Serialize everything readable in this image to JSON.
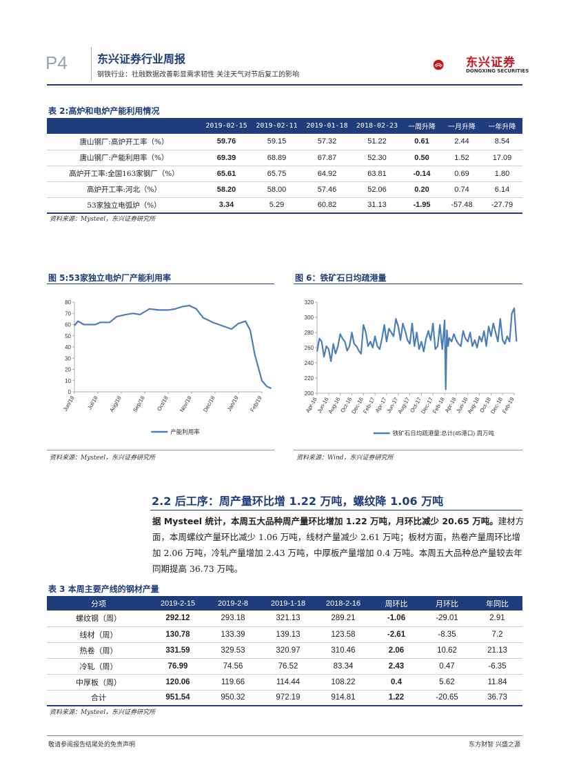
{
  "header": {
    "page": "P4",
    "title": "东兴证券行业周报",
    "subtitle": "钢铁行业：社融数据改善彰显需求韧性 关注天气对节后复工的影响",
    "logo_cn": "东兴证券",
    "logo_en": "DONGXING SECURITIES"
  },
  "table2": {
    "caption": "表 2:高炉和电炉产能利用情况",
    "columns": [
      "",
      "2019-02-15",
      "2019-02-11",
      "2019-01-18",
      "2018-02-23",
      "一周升降",
      "一月升降",
      "一年升降"
    ],
    "rows": [
      [
        "唐山钢厂:高炉开工率（%）",
        "59.76",
        "59.15",
        "57.32",
        "51.22",
        "0.61",
        "2.44",
        "8.54"
      ],
      [
        "唐山钢厂:产能利用率（%）",
        "69.39",
        "68.89",
        "67.87",
        "52.30",
        "0.50",
        "1.52",
        "17.09"
      ],
      [
        "高炉开工率:全国163家钢厂（%）",
        "65.61",
        "65.75",
        "64.92",
        "63.81",
        "-0.14",
        "0.69",
        "1.80"
      ],
      [
        "高炉开工率:河北（%）",
        "58.20",
        "58.00",
        "57.46",
        "52.06",
        "0.20",
        "0.74",
        "6.14"
      ],
      [
        "53家独立电弧炉（%）",
        "3.34",
        "5.29",
        "60.82",
        "31.13",
        "-1.95",
        "-57.48",
        "-27.79"
      ]
    ],
    "source": "资料来源：Mysteel，东兴证券研究所"
  },
  "chart5": {
    "caption": "图 5:53家独立电炉厂产能利用率",
    "source": "资料来源：Mysteel，东兴证券研究所"
  },
  "chart6": {
    "caption": "图 6：铁矿石日均疏港量",
    "source": "资料来源：Wind，东兴证券研究所"
  },
  "chart_data": [
    {
      "type": "line",
      "title": "53家独立电炉厂产能利用率",
      "legend": "产能利用率",
      "x_ticks": [
        "Jun/18",
        "Jul/18",
        "Aug/18",
        "Sep/18",
        "Oct/18",
        "Nov/18",
        "Dec/18",
        "Jan/19",
        "Feb/19"
      ],
      "ylim": [
        0,
        80
      ],
      "y_ticks": [
        0,
        10,
        20,
        30,
        40,
        50,
        60,
        70,
        80
      ],
      "x": [
        0,
        0.15,
        0.4,
        0.9,
        1.1,
        1.5,
        1.8,
        2.2,
        2.5,
        2.8,
        3.2,
        3.6,
        4.0,
        4.3,
        4.6,
        4.9,
        5.2,
        5.5,
        5.9,
        6.3,
        6.7,
        7.0,
        7.3,
        7.5,
        7.7,
        8.0,
        8.2,
        8.4
      ],
      "values": [
        59,
        63,
        60,
        60,
        62,
        62,
        67,
        69,
        70,
        69,
        74,
        73,
        73,
        74,
        76,
        77,
        74,
        66,
        62,
        59,
        56,
        61,
        63,
        55,
        33,
        10,
        5,
        3
      ]
    },
    {
      "type": "line",
      "title": "铁矿石日均疏港量",
      "legend": "铁矿石日均疏港量:总计(45港口)  周万吨",
      "x_ticks": [
        "Apr-16",
        "Jun-16",
        "Aug-16",
        "Oct-16",
        "Dec-16",
        "Feb-17",
        "Apr-17",
        "Jun-17",
        "Aug-17",
        "Oct-17",
        "Dec-17",
        "Feb-18",
        "Apr-18",
        "Jun-18",
        "Aug-18",
        "Oct-18",
        "Dec-18",
        "Feb-19"
      ],
      "ylim": [
        200,
        320
      ],
      "y_ticks": [
        200,
        220,
        240,
        260,
        280,
        300,
        320
      ],
      "x": [
        0,
        0.2,
        0.4,
        0.6,
        0.8,
        1.0,
        1.2,
        1.4,
        1.6,
        1.8,
        2.0,
        2.2,
        2.4,
        2.6,
        2.8,
        3.0,
        3.2,
        3.4,
        3.6,
        3.8,
        4.0,
        4.2,
        4.4,
        4.6,
        4.8,
        5.0,
        5.2,
        5.4,
        5.6,
        5.8,
        6.0,
        6.2,
        6.4,
        6.6,
        6.8,
        7.0,
        7.2,
        7.4,
        7.6,
        7.8,
        8.0,
        8.2,
        8.4,
        8.6,
        8.8,
        9.0,
        9.2,
        9.4,
        9.6,
        9.8,
        10.0,
        10.2,
        10.4,
        10.6,
        10.8,
        11.0,
        11.1,
        11.2,
        11.3,
        11.4,
        11.6,
        11.8,
        12.0,
        12.2,
        12.4,
        12.6,
        12.8,
        13.0,
        13.2,
        13.4,
        13.6,
        13.8,
        14.0,
        14.2,
        14.4,
        14.6,
        14.8,
        15.0,
        15.2,
        15.4,
        15.6,
        15.8,
        16.0,
        16.2,
        16.4,
        16.6,
        16.8,
        17.0,
        17.1,
        17.2
      ],
      "values": [
        255,
        272,
        268,
        248,
        262,
        258,
        242,
        265,
        252,
        262,
        278,
        272,
        268,
        256,
        262,
        280,
        265,
        262,
        256,
        252,
        290,
        280,
        262,
        268,
        260,
        275,
        262,
        258,
        272,
        290,
        268,
        285,
        280,
        275,
        298,
        288,
        270,
        292,
        282,
        270,
        265,
        292,
        262,
        280,
        258,
        268,
        255,
        272,
        282,
        270,
        292,
        258,
        262,
        290,
        258,
        296,
        205,
        283,
        262,
        273,
        268,
        278,
        270,
        265,
        262,
        282,
        272,
        268,
        280,
        262,
        270,
        260,
        275,
        268,
        282,
        262,
        288,
        275,
        292,
        280,
        268,
        298,
        270,
        265,
        275,
        268,
        305,
        312,
        290,
        268
      ]
    }
  ],
  "section": {
    "title": "2.2 后工序：周产量环比增 1.22 万吨，螺纹降 1.06 万吨",
    "lead": "据 Mysteel 统计，本周五大品种周产量环比增加 1.22 万吨，月环比减少 20.65 万吨。",
    "body": "建材方面，本周螺纹产量环比减少 1.06 万吨，线材产量减少 2.61 万吨；板材方面，热卷产量周环比增加 2.06 万吨，冷轧产量增加 2.43 万吨，中厚板产量增加 0.4 万吨。本周五大品种总产量较去年同期提高 36.73 万吨。"
  },
  "table3": {
    "caption": "表 3 本周主要产线的钢材产量",
    "columns": [
      "分项",
      "2019-2-15",
      "2019-2-8",
      "2019-1-18",
      "2018-2-16",
      "周环比",
      "月环比",
      "年同比"
    ],
    "rows": [
      [
        "螺纹钢（周）",
        "292.12",
        "293.18",
        "321.13",
        "289.21",
        "-1.06",
        "-29.01",
        "2.91"
      ],
      [
        "线材（周）",
        "130.78",
        "133.39",
        "139.13",
        "123.58",
        "-2.61",
        "-8.35",
        "7.2"
      ],
      [
        "热卷（周）",
        "331.59",
        "329.53",
        "320.97",
        "310.46",
        "2.06",
        "10.62",
        "21.13"
      ],
      [
        "冷轧（周）",
        "76.99",
        "74.56",
        "76.52",
        "83.34",
        "2.43",
        "0.47",
        "-6.35"
      ],
      [
        "中厚板（周）",
        "120.06",
        "119.66",
        "114.44",
        "108.22",
        "0.4",
        "5.62",
        "11.84"
      ],
      [
        "合计",
        "951.54",
        "950.32",
        "972.19",
        "914.81",
        "1.22",
        "-20.65",
        "36.73"
      ]
    ],
    "source": "资料来源：Mysteel，东兴证券研究所"
  },
  "footer": {
    "left": "敬请参阅报告结尾处的免责声明",
    "right": "东方财智 兴盛之源"
  },
  "colors": {
    "brand": "#1f3d7a",
    "accent": "#c8161d",
    "line": "#4a7ebb"
  }
}
